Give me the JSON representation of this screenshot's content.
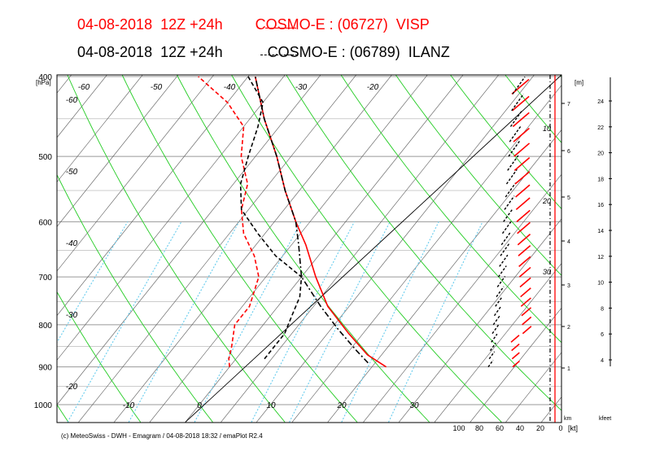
{
  "titles": {
    "visp": "04-08-2018  12Z +24h        COSMO-E : (06727)  VISP",
    "ilanz": "04-08-2018  12Z +24h           COSMO-E : (06789)  ILANZ"
  },
  "colors": {
    "visp": "#ff0000",
    "ilanz": "#000000",
    "dry_adiabat": "#22cc22",
    "mixing_ratio": "#66ccee",
    "isotherm": "#555555",
    "isobar": "#999999"
  },
  "footer": "(c) MeteoSwiss - DWH - Emagram / 04-08-2018  18:32 / emaPlot R2.4",
  "chart_data": {
    "type": "line",
    "diagram": "emagram",
    "y_axis": {
      "label": "[hPa]",
      "scale": "log",
      "range": [
        1000,
        400
      ],
      "ticks": [
        400,
        500,
        600,
        700,
        800,
        900,
        1000
      ]
    },
    "isotherm_labels": [
      "-60",
      "-50",
      "-40",
      "-30",
      "-20",
      "-60",
      "-50",
      "-40",
      "-30",
      "-20",
      "-10",
      "0",
      "10",
      "20",
      "30"
    ],
    "height_m_axis": {
      "label": "[m]",
      "unit": "km",
      "ticks": [
        "1",
        "2",
        "3",
        "4",
        "5",
        "6",
        "7"
      ]
    },
    "height_kfeet_axis": {
      "unit": "kfeet",
      "ticks": [
        "4",
        "6",
        "8",
        "10",
        "12",
        "14",
        "16",
        "18",
        "20",
        "22",
        "24"
      ]
    },
    "wind_axis": {
      "unit": "[kt]",
      "ticks": [
        "100",
        "80",
        "60",
        "40",
        "20",
        "0"
      ],
      "speed_labels": [
        "10",
        "20",
        "30"
      ]
    },
    "series": [
      {
        "name": "VISP",
        "temperature": {
          "p": [
            900,
            870,
            820,
            760,
            700,
            640,
            600,
            550,
            500,
            450,
            400
          ],
          "t": [
            22,
            18,
            13,
            7,
            2,
            -3,
            -7,
            -12,
            -17,
            -23,
            -29
          ]
        },
        "dewpoint": {
          "p": [
            900,
            880,
            850,
            800,
            760,
            700,
            660,
            620,
            580,
            540,
            500,
            460,
            430,
            400
          ],
          "t": [
            0,
            -1,
            -2,
            -4,
            -4,
            -6,
            -9,
            -13,
            -16,
            -18,
            -22,
            -25,
            -30,
            -37
          ]
        }
      },
      {
        "name": "ILANZ",
        "temperature": {
          "p": [
            890,
            860,
            810,
            760,
            700,
            640,
            600,
            550,
            500,
            450,
            400
          ],
          "t": [
            19,
            16,
            11,
            6,
            0,
            -4,
            -7,
            -12,
            -17,
            -23,
            -29
          ]
        },
        "dewpoint": {
          "p": [
            880,
            850,
            820,
            780,
            740,
            700,
            660,
            620,
            580,
            540,
            500,
            460,
            430,
            400
          ],
          "t": [
            4,
            4,
            4,
            3,
            2,
            0,
            -6,
            -11,
            -16,
            -19,
            -21,
            -23,
            -25,
            -30
          ]
        }
      }
    ]
  }
}
